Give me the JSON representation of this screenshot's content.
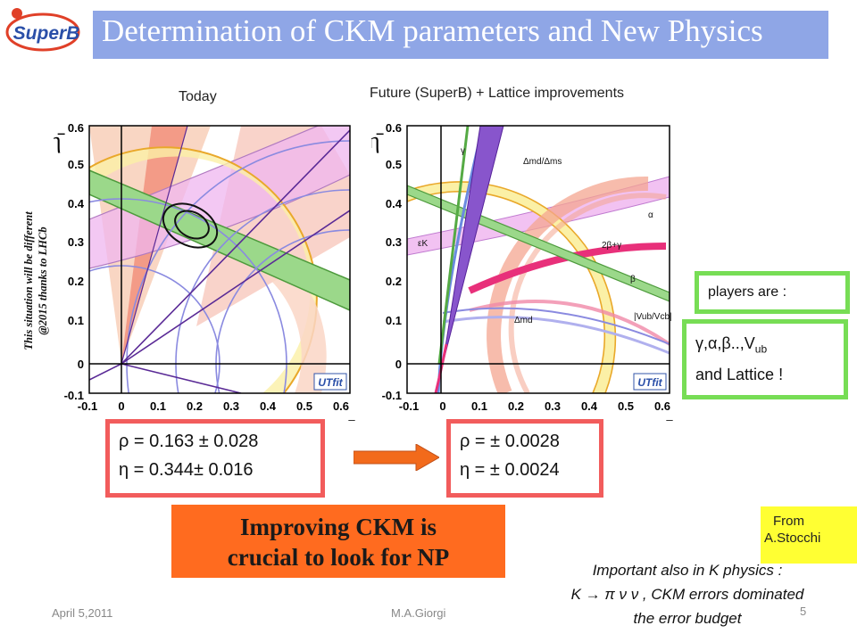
{
  "header": {
    "logo_text": "SuperB",
    "title": "Determination of CKM parameters and New Physics"
  },
  "left_plot": {
    "caption": "Today",
    "y_axis_label": "η̄",
    "x_axis_label": "ρ̄",
    "x_ticks": [
      "-0.1",
      "0",
      "0.1",
      "0.2",
      "0.3",
      "0.4",
      "0.5",
      "0.6"
    ],
    "y_ticks": [
      "0.6",
      "0.5",
      "0.4",
      "0.3",
      "0.2",
      "0.1",
      "0",
      "-0.1"
    ],
    "badge": "UTfit"
  },
  "right_plot": {
    "caption": "Future (SuperB) + Lattice improvements",
    "y_axis_label": "η̄",
    "x_axis_label": "ρ̄",
    "x_ticks": [
      "-0.1",
      "0",
      "0.1",
      "0.2",
      "0.3",
      "0.4",
      "0.5",
      "0.6"
    ],
    "y_ticks": [
      "0.6",
      "0.5",
      "0.4",
      "0.3",
      "0.2",
      "0.1",
      "0",
      "-0.1"
    ],
    "badge": "UTfit",
    "labels": {
      "gamma": "γ",
      "dmd_dms": "Δmd/Δms",
      "alpha": "α",
      "epsk": "εK",
      "two_beta_gamma": "2β+γ",
      "beta": "β",
      "vub_vcb": "|Vub/Vcb|",
      "dmd": "Δmd"
    }
  },
  "side_note": {
    "line1": "This situation  will be different",
    "line2": "@2015 thanks to LHCb"
  },
  "results_today": {
    "rho_line": "ρ = 0.163 ± 0.028",
    "eta_line": "η  = 0.344± 0.016"
  },
  "results_future": {
    "rho_line": "ρ =   ± 0.0028",
    "eta_line": "η  =  ± 0.0024"
  },
  "players_box": {
    "text": "players are :"
  },
  "params_box": {
    "line1": "γ,α,β..,V",
    "line1_sub": "ub",
    "line2": "and Lattice !"
  },
  "banner": {
    "line1": "Improving CKM is",
    "line2": "crucial to look for NP"
  },
  "from_box": {
    "line1": "From",
    "line2": "A.Stocchi"
  },
  "k_note": {
    "line1": "Important also in K physics :",
    "line2": "K → π ν ν , CKM errors dominated",
    "line3": "the error budget"
  },
  "footer": {
    "date": "April 5,2011",
    "author": "M.A.Giorgi",
    "page": "5"
  },
  "colors": {
    "title_bar": "#8fa6e6",
    "result_border": "#f25c5c",
    "green_border": "#77dd55",
    "banner": "#ff6b1f",
    "from_box": "#ffff33",
    "arrow": "#f26a1b"
  }
}
